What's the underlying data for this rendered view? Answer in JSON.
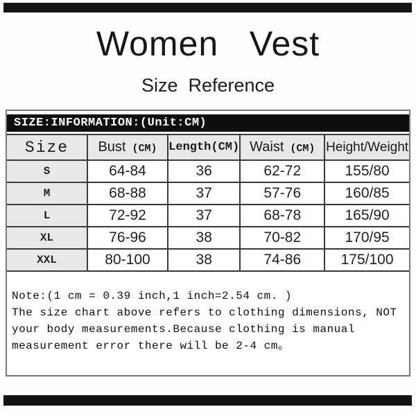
{
  "header": {
    "title": "Women   Vest",
    "subtitle": "Size  Reference"
  },
  "panel": {
    "banner": "SIZE:INFORMATION:(Unit:CM)"
  },
  "table": {
    "headers": [
      {
        "label": "Size",
        "unit": ""
      },
      {
        "label": "Bust",
        "unit": " (CM)"
      },
      {
        "label": "Length",
        "unit": "(CM)"
      },
      {
        "label": "Waist",
        "unit": " (CM)"
      },
      {
        "label": "Height/Weight",
        "unit": ""
      }
    ],
    "rows": [
      [
        "S",
        "64-84",
        "36",
        "62-72",
        "155/80"
      ],
      [
        "M",
        "68-88",
        "37",
        "57-76",
        "160/85"
      ],
      [
        "L",
        "72-92",
        "37",
        "68-78",
        "165/90"
      ],
      [
        "XL",
        "76-96",
        "38",
        "70-82",
        "170/95"
      ],
      [
        "XXL",
        "80-100",
        "38",
        "74-86",
        "175/100"
      ]
    ]
  },
  "note": {
    "lines": [
      "Note:(1 cm = 0.39 inch,1 inch=2.54 cm. )",
      "The size chart above refers to clothing dimensions, NOT",
      "your body measurements.Because clothing is manual",
      "measurement error there will be 2-4 cm。"
    ]
  },
  "colors": {
    "divider_bar": "#141414",
    "banner_bg": "#0e0e0e",
    "banner_text": "#ffffff",
    "header_cell_bg": "#e8e8e8",
    "table_border": "#3a3a3a",
    "panel_border": "#777777"
  }
}
